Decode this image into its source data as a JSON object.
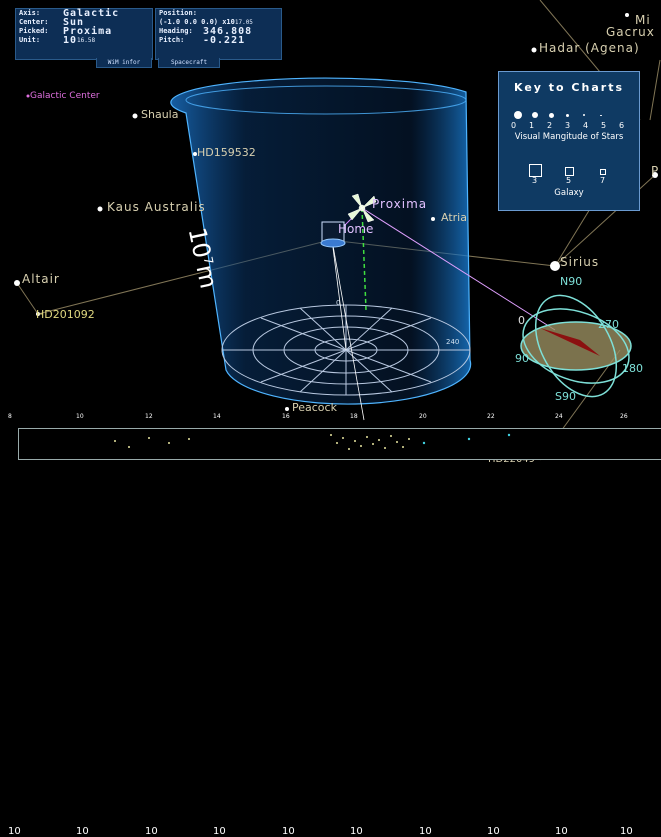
{
  "info_panel": {
    "axis_label": "Axis:",
    "axis_value": "Galactic",
    "center_label": "Center:",
    "center_value": "Sun",
    "picked_label": "Picked:",
    "picked_value": "Proxima",
    "unit_label": "Unit:",
    "unit_value": "10",
    "unit_exp": "16.58",
    "tab_label": "WiM infor"
  },
  "position_panel": {
    "position_label": "Position:",
    "position_value": "(-1.0 0.0 0.0) x10",
    "position_exp": "17.05",
    "heading_label": "Heading:",
    "heading_value": "346.808",
    "pitch_label": "Pitch:",
    "pitch_value": "-0.221",
    "tab_label": "Spacecraft"
  },
  "key_to_charts": {
    "title": "Key to Charts",
    "magnitudes": [
      "0",
      "1",
      "2",
      "3",
      "4",
      "5",
      "6"
    ],
    "magnitude_label": "Visual Mangitude of Stars",
    "galaxy_sizes": [
      "3",
      "5",
      "7"
    ],
    "galaxy_label": "Galaxy"
  },
  "cylinder": {
    "scale_label": "10",
    "scale_exp": "7",
    "scale_unit": "m"
  },
  "stars": {
    "galactic_center": "Galactic Center",
    "shaula": "Shaula",
    "hd159532": "HD159532",
    "kaus_australis": "Kaus Australis",
    "altair": "Altair",
    "hd201092": "HD201092",
    "proxima": "Proxima",
    "home": "Home",
    "atria": "Atria",
    "sirius": "Sirius",
    "hadar": "Hadar (Agena)",
    "gacrux": "Gacrux",
    "mi": "Mi",
    "peacock": "Peacock",
    "p": "P",
    "hd_bottom": "HD22049"
  },
  "gimbal": {
    "n": "N90",
    "s": "S90",
    "e": "270",
    "w": "90",
    "se": "180",
    "zero": "0"
  },
  "scale_bar": {
    "ticks": [
      {
        "base": "10",
        "exp": "8"
      },
      {
        "base": "10",
        "exp": "10"
      },
      {
        "base": "10",
        "exp": "12"
      },
      {
        "base": "10",
        "exp": "14"
      },
      {
        "base": "10",
        "exp": "16"
      },
      {
        "base": "10",
        "exp": "18"
      },
      {
        "base": "10",
        "exp": "20"
      },
      {
        "base": "10",
        "exp": "22"
      },
      {
        "base": "10",
        "exp": "24"
      },
      {
        "base": "10",
        "exp": "26"
      }
    ]
  },
  "colors": {
    "panel_bg": "#0d2e55",
    "cylinder": "#3aa0ff",
    "star_label": "#d8d0b0",
    "magenta": "#e070e0",
    "gimbal": "#7ee0d8"
  }
}
